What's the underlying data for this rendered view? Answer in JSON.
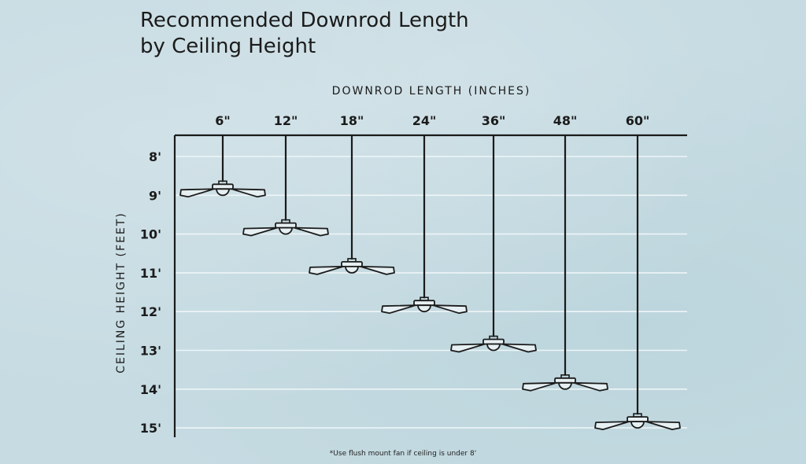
{
  "title": {
    "line1": "Recommended Downrod Length",
    "line2": "by Ceiling Height"
  },
  "footnote": "*Use flush mount fan if ceiling is under 8'",
  "colors": {
    "background": "#c6dbe2",
    "ink": "#1b1b1b",
    "gridline": "#eef5f7"
  },
  "chart_data": {
    "type": "scatter",
    "xlabel": "DOWNROD LENGTH (INCHES)",
    "ylabel": "CEILING HEIGHT (FEET)",
    "x_categories": [
      "6\"",
      "12\"",
      "18\"",
      "24\"",
      "36\"",
      "48\"",
      "60\""
    ],
    "y_ticks": [
      "8'",
      "9'",
      "10'",
      "11'",
      "12'",
      "13'",
      "14'",
      "15'"
    ],
    "ylim": [
      8,
      15
    ],
    "grid": true,
    "series": [
      {
        "marker": "ceiling-fan",
        "points": [
          {
            "x": "6\"",
            "y": 9
          },
          {
            "x": "12\"",
            "y": 10
          },
          {
            "x": "18\"",
            "y": 11
          },
          {
            "x": "24\"",
            "y": 12
          },
          {
            "x": "36\"",
            "y": 13
          },
          {
            "x": "48\"",
            "y": 14
          },
          {
            "x": "60\"",
            "y": 15
          }
        ]
      }
    ]
  }
}
